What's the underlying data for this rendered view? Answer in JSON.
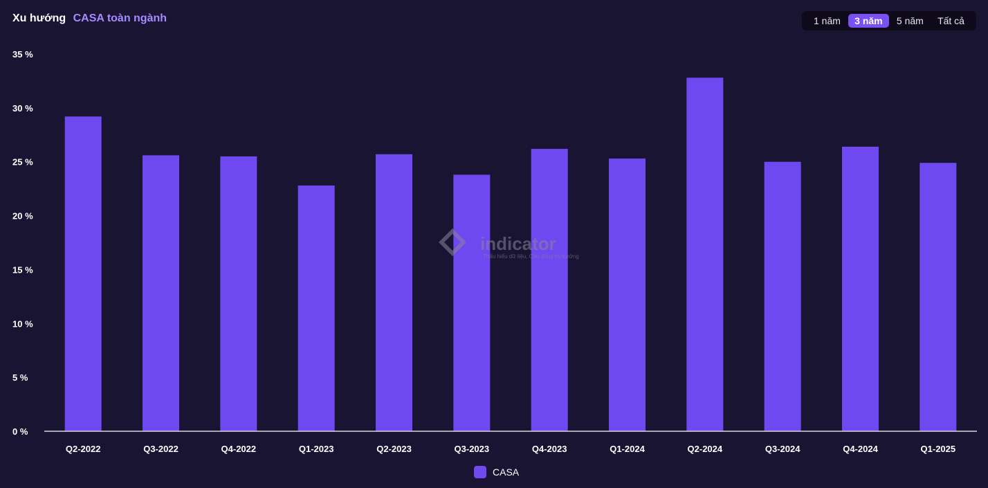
{
  "header": {
    "prefix": "Xu hướng",
    "title": "CASA toàn ngành"
  },
  "range_options": [
    {
      "label": "1 năm",
      "active": false
    },
    {
      "label": "3 năm",
      "active": true
    },
    {
      "label": "5 năm",
      "active": false
    },
    {
      "label": "Tất cả",
      "active": false
    }
  ],
  "watermark": {
    "brand": "indicator",
    "tagline": "Thấu hiểu dữ liệu, Chủ động thị trường"
  },
  "legend": {
    "label": "CASA",
    "color": "#7048f0"
  },
  "chart_data": {
    "type": "bar",
    "categories": [
      "Q2-2022",
      "Q3-2022",
      "Q4-2022",
      "Q1-2023",
      "Q2-2023",
      "Q3-2023",
      "Q4-2023",
      "Q1-2024",
      "Q2-2024",
      "Q3-2024",
      "Q4-2024",
      "Q1-2025"
    ],
    "series": [
      {
        "name": "CASA",
        "values": [
          29.2,
          25.6,
          25.5,
          22.8,
          25.7,
          23.8,
          26.2,
          25.3,
          32.8,
          25.0,
          26.4,
          24.9
        ],
        "color": "#7048f0"
      }
    ],
    "ylim": [
      0,
      35
    ],
    "yticks": [
      0,
      5,
      10,
      15,
      20,
      25,
      30,
      35
    ],
    "ytick_labels": [
      "0 %",
      "5 %",
      "10 %",
      "15 %",
      "20 %",
      "25 %",
      "30 %",
      "35 %"
    ],
    "grid": false,
    "legend_position": "bottom-center"
  }
}
